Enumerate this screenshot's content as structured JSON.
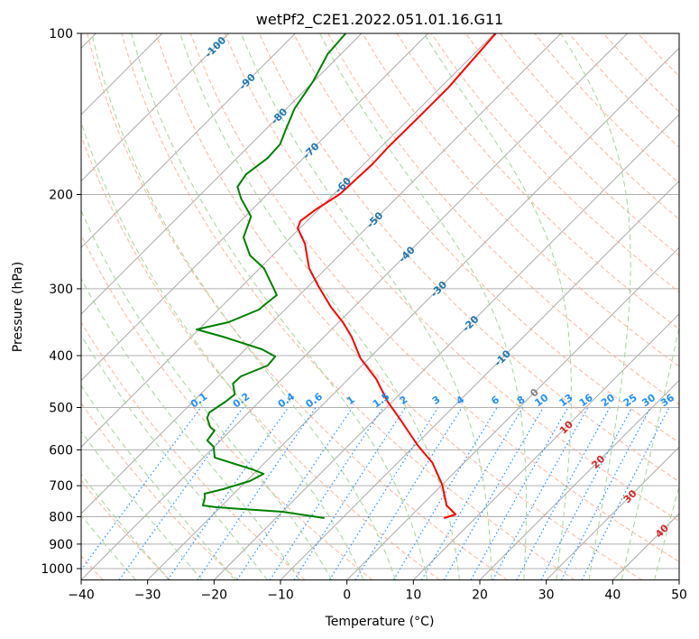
{
  "chart_data": {
    "type": "line",
    "subtype": "skew-t log-p",
    "title": "wetPf2_C2E1.2022.051.01.16.G11",
    "xlabel": "Temperature (°C)",
    "ylabel": "Pressure (hPa)",
    "xlim": [
      -40,
      50
    ],
    "ylim": [
      1050,
      100
    ],
    "xticks": [
      -40,
      -30,
      -20,
      -10,
      0,
      10,
      20,
      30,
      40,
      50
    ],
    "yticks": [
      100,
      200,
      300,
      400,
      500,
      600,
      700,
      800,
      900,
      1000
    ],
    "grid": true,
    "series": [
      {
        "name": "temperature",
        "color": "#ff0000",
        "points": [
          [
            100,
            -59.8
          ],
          [
            126.2,
            -58.8
          ],
          [
            141.9,
            -58.8
          ],
          [
            163.1,
            -58.9
          ],
          [
            175.6,
            -58.7
          ],
          [
            199.6,
            -59.1
          ],
          [
            213.3,
            -60.4
          ],
          [
            224.2,
            -61.0
          ],
          [
            231.3,
            -60.3
          ],
          [
            247.1,
            -56.9
          ],
          [
            274.5,
            -52.6
          ],
          [
            296.6,
            -48.5
          ],
          [
            324.3,
            -43.5
          ],
          [
            346.4,
            -39.4
          ],
          [
            368.6,
            -35.9
          ],
          [
            404.7,
            -31.3
          ],
          [
            442.5,
            -25.8
          ],
          [
            487.5,
            -20.7
          ],
          [
            523.0,
            -16.5
          ],
          [
            587.5,
            -9.7
          ],
          [
            634.9,
            -4.7
          ],
          [
            696.9,
            0.0
          ],
          [
            762.1,
            3.8
          ],
          [
            792.2,
            6.5
          ],
          [
            804.6,
            5.3
          ]
        ]
      },
      {
        "name": "dewpoint",
        "color": "#008000",
        "points": [
          [
            100,
            -82.4
          ],
          [
            109.3,
            -82.0
          ],
          [
            122.8,
            -80.1
          ],
          [
            138.0,
            -78.8
          ],
          [
            150.9,
            -77.0
          ],
          [
            161.2,
            -75.6
          ],
          [
            171.0,
            -75.4
          ],
          [
            183.3,
            -76.2
          ],
          [
            193.5,
            -75.6
          ],
          [
            203.5,
            -73.3
          ],
          [
            219.9,
            -69.1
          ],
          [
            240.5,
            -67.1
          ],
          [
            259.9,
            -63.4
          ],
          [
            274.5,
            -59.4
          ],
          [
            296.6,
            -55.4
          ],
          [
            308.3,
            -53.4
          ],
          [
            321.8,
            -53.8
          ],
          [
            328.1,
            -53.9
          ],
          [
            346.4,
            -56.6
          ],
          [
            357.4,
            -60.3
          ],
          [
            368.6,
            -55.3
          ],
          [
            389.2,
            -47.5
          ],
          [
            401.5,
            -44.4
          ],
          [
            417.4,
            -44.2
          ],
          [
            437.3,
            -46.6
          ],
          [
            451.1,
            -46.7
          ],
          [
            472.6,
            -44.8
          ],
          [
            487.5,
            -45.1
          ],
          [
            510.9,
            -45.9
          ],
          [
            523.0,
            -45.4
          ],
          [
            543.8,
            -43.6
          ],
          [
            552.1,
            -42.4
          ],
          [
            576.2,
            -42.0
          ],
          [
            592.1,
            -40.1
          ],
          [
            620.3,
            -38.3
          ],
          [
            634.9,
            -34.9
          ],
          [
            652.4,
            -30.9
          ],
          [
            665.2,
            -28.5
          ],
          [
            686.1,
            -29.5
          ],
          [
            710.6,
            -32.3
          ],
          [
            724.4,
            -34.4
          ],
          [
            738.7,
            -33.7
          ],
          [
            762.1,
            -32.9
          ],
          [
            767.9,
            -30.6
          ],
          [
            783.1,
            -20.0
          ],
          [
            804.6,
            -12.7
          ]
        ]
      }
    ],
    "isotherm_labels": [
      "-100",
      "-90",
      "-80",
      "-70",
      "-60",
      "-50",
      "-40",
      "-30",
      "-20",
      "-10",
      "0",
      "10",
      "20",
      "30",
      "40"
    ],
    "mixing_ratio_labels": [
      "0.1",
      "0.2",
      "0.4",
      "0.6",
      "1",
      "1.5",
      "2",
      "3",
      "4",
      "6",
      "8",
      "10",
      "13",
      "16",
      "20",
      "25",
      "30",
      "36"
    ],
    "dry_adiabats_theta_c": [
      -50,
      -40,
      -30,
      -20,
      -10,
      0,
      10,
      20,
      30,
      40,
      50,
      60,
      70,
      80,
      90,
      100,
      110,
      120,
      130,
      140,
      150,
      160,
      170,
      180
    ],
    "moist_adiabats_start_c": [
      -35,
      -30,
      -25,
      -20,
      -15,
      -10,
      -5,
      0,
      5,
      10,
      15,
      20,
      25,
      30,
      35,
      40,
      45
    ],
    "colors": {
      "isotherm": "#aaaaaa",
      "dry_adiabat": "#f4a582",
      "moist_adiabat": "#a6d49a",
      "mixing_ratio": "#1e90ff",
      "label_negative": "#1f77b4",
      "label_zero": "#808080",
      "label_positive": "#d62728"
    }
  }
}
